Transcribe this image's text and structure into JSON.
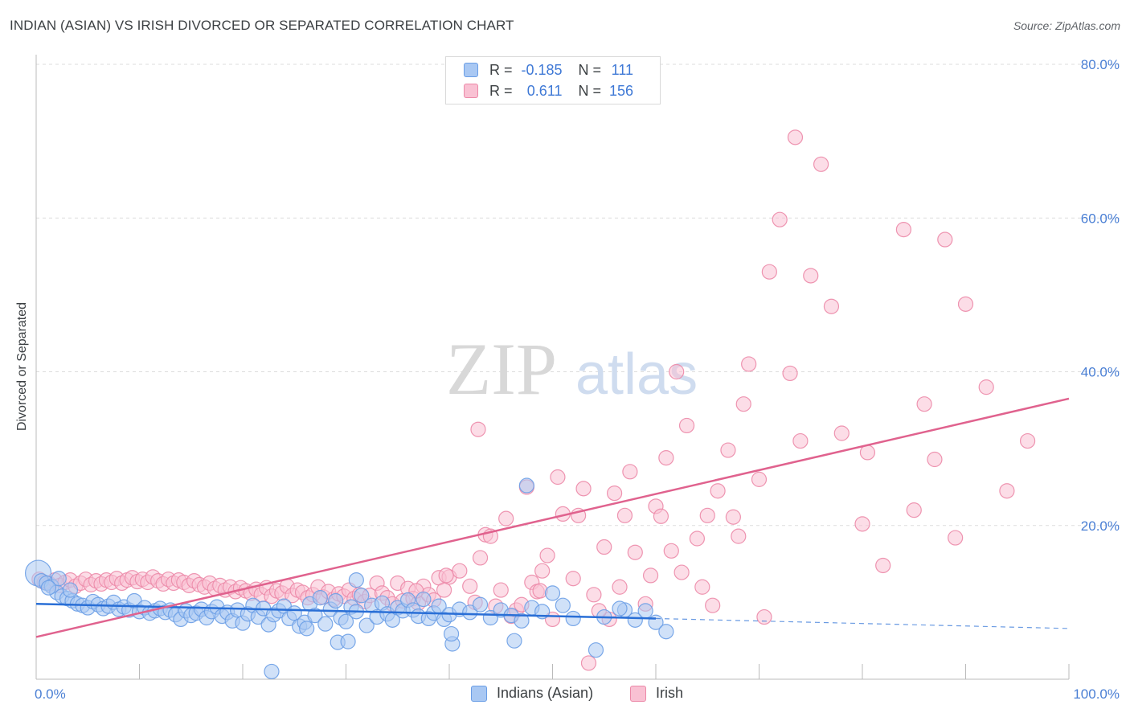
{
  "header": {
    "title": "INDIAN (ASIAN) VS IRISH DIVORCED OR SEPARATED CORRELATION CHART",
    "source": "Source: ZipAtlas.com"
  },
  "legend_top": {
    "rows": [
      {
        "r_label": "R = ",
        "r_value": "-0.185",
        "n_label": "N = ",
        "n_value": "111"
      },
      {
        "r_label": "R = ",
        "r_value": "0.611",
        "n_label": "N = ",
        "n_value": "156"
      }
    ]
  },
  "legend_bottom": {
    "items": [
      {
        "label": "Indians (Asian)"
      },
      {
        "label": "Irish"
      }
    ]
  },
  "watermark": {
    "zip": "ZIP",
    "atlas": "atlas"
  },
  "colors": {
    "indians_fill": "#a9c8f3",
    "indians_stroke": "#6b9ee6",
    "indians_line": "#2a6fd6",
    "irish_fill": "#f9c1d3",
    "irish_stroke": "#ec89a8",
    "irish_line": "#e0628e",
    "axis_label": "#4a7fd4",
    "grid": "#dddddd"
  },
  "chart_data": {
    "type": "scatter",
    "title": "INDIAN (ASIAN) VS IRISH DIVORCED OR SEPARATED CORRELATION CHART",
    "xlabel": "",
    "ylabel": "Divorced or Separated",
    "xlim": [
      0,
      100
    ],
    "ylim": [
      0,
      80
    ],
    "x_tick_labels": [
      "0.0%",
      "100.0%"
    ],
    "y_ticks": [
      20,
      40,
      60,
      80
    ],
    "y_tick_labels": [
      "20.0%",
      "40.0%",
      "60.0%",
      "80.0%"
    ],
    "grid": "horizontal dashed",
    "legend_position": "top-center",
    "series": [
      {
        "name": "Indians (Asian)",
        "r": -0.185,
        "n": 111,
        "trend": {
          "x0": 0,
          "y0": 9.8,
          "x1": 60,
          "y1": 7.9,
          "dashed_to_x": 100,
          "dashed_to_y": 6.6
        },
        "points": [
          [
            0.2,
            13.8
          ],
          [
            0.5,
            12.8
          ],
          [
            1.0,
            12.5
          ],
          [
            1.5,
            12.1
          ],
          [
            2.0,
            11.3
          ],
          [
            2.5,
            10.8
          ],
          [
            3.0,
            10.5
          ],
          [
            3.5,
            10.2
          ],
          [
            4.0,
            9.8
          ],
          [
            4.5,
            9.6
          ],
          [
            5.0,
            9.3
          ],
          [
            5.5,
            10.1
          ],
          [
            6.0,
            9.7
          ],
          [
            6.5,
            9.2
          ],
          [
            7.0,
            9.5
          ],
          [
            7.5,
            10.0
          ],
          [
            8.0,
            9.1
          ],
          [
            8.5,
            9.4
          ],
          [
            9.0,
            9.0
          ],
          [
            9.5,
            10.2
          ],
          [
            10.0,
            8.8
          ],
          [
            10.5,
            9.3
          ],
          [
            11.0,
            8.6
          ],
          [
            11.5,
            8.9
          ],
          [
            12.0,
            9.2
          ],
          [
            12.5,
            8.7
          ],
          [
            13.0,
            9.0
          ],
          [
            13.5,
            8.4
          ],
          [
            14.0,
            7.8
          ],
          [
            14.5,
            8.9
          ],
          [
            15.0,
            8.3
          ],
          [
            15.5,
            8.6
          ],
          [
            16.0,
            9.1
          ],
          [
            16.5,
            8.0
          ],
          [
            17.0,
            8.8
          ],
          [
            17.5,
            9.4
          ],
          [
            18.0,
            8.2
          ],
          [
            18.5,
            8.7
          ],
          [
            19.0,
            7.6
          ],
          [
            19.5,
            9.0
          ],
          [
            20.0,
            7.3
          ],
          [
            20.5,
            8.5
          ],
          [
            21.0,
            9.6
          ],
          [
            21.5,
            8.1
          ],
          [
            22.0,
            9.2
          ],
          [
            22.5,
            7.1
          ],
          [
            23.0,
            8.4
          ],
          [
            23.5,
            8.9
          ],
          [
            24.0,
            9.5
          ],
          [
            24.5,
            7.9
          ],
          [
            25.0,
            8.6
          ],
          [
            25.5,
            6.9
          ],
          [
            26.0,
            7.4
          ],
          [
            26.5,
            9.8
          ],
          [
            27.0,
            8.3
          ],
          [
            27.5,
            10.6
          ],
          [
            28.0,
            7.2
          ],
          [
            28.5,
            9.1
          ],
          [
            29.0,
            10.2
          ],
          [
            29.5,
            8.0
          ],
          [
            30.0,
            7.5
          ],
          [
            30.5,
            9.4
          ],
          [
            31.0,
            8.8
          ],
          [
            31.5,
            10.9
          ],
          [
            32.0,
            7.0
          ],
          [
            32.5,
            9.6
          ],
          [
            33.0,
            8.1
          ],
          [
            33.5,
            9.9
          ],
          [
            34.0,
            8.5
          ],
          [
            34.5,
            7.7
          ],
          [
            35.0,
            9.3
          ],
          [
            35.5,
            8.9
          ],
          [
            36.0,
            10.3
          ],
          [
            36.5,
            9.0
          ],
          [
            37.0,
            8.2
          ],
          [
            37.5,
            10.4
          ],
          [
            38.0,
            7.9
          ],
          [
            38.5,
            8.6
          ],
          [
            39.0,
            9.5
          ],
          [
            39.5,
            7.8
          ],
          [
            40.0,
            8.4
          ],
          [
            41.0,
            9.1
          ],
          [
            42.0,
            8.7
          ],
          [
            43.0,
            9.7
          ],
          [
            44.0,
            8.0
          ],
          [
            45.0,
            9.0
          ],
          [
            46.0,
            8.3
          ],
          [
            47.0,
            7.6
          ],
          [
            47.5,
            25.2
          ],
          [
            48.0,
            9.3
          ],
          [
            49.0,
            8.8
          ],
          [
            50.0,
            11.2
          ],
          [
            51.0,
            9.6
          ],
          [
            52.0,
            7.9
          ],
          [
            55.0,
            8.1
          ],
          [
            57.0,
            9.0
          ],
          [
            58.0,
            7.7
          ],
          [
            59.0,
            8.9
          ],
          [
            60.0,
            7.4
          ],
          [
            61.0,
            6.2
          ],
          [
            2.2,
            13.1
          ],
          [
            3.3,
            11.6
          ],
          [
            1.2,
            11.9
          ],
          [
            22.8,
            1.0
          ],
          [
            26.2,
            6.6
          ],
          [
            31.0,
            12.9
          ],
          [
            29.2,
            4.8
          ],
          [
            30.2,
            4.9
          ],
          [
            40.3,
            4.6
          ],
          [
            40.2,
            5.9
          ],
          [
            46.3,
            5.0
          ],
          [
            54.2,
            3.8
          ],
          [
            56.5,
            9.2
          ]
        ]
      },
      {
        "name": "Irish",
        "r": 0.611,
        "n": 156,
        "trend": {
          "x0": 0,
          "y0": 5.5,
          "x1": 100,
          "y1": 36.5
        },
        "points": [
          [
            0.3,
            13.0
          ],
          [
            0.8,
            12.6
          ],
          [
            1.3,
            12.4
          ],
          [
            1.8,
            12.9
          ],
          [
            2.3,
            12.2
          ],
          [
            2.8,
            12.6
          ],
          [
            3.3,
            12.9
          ],
          [
            3.8,
            12.1
          ],
          [
            4.3,
            12.5
          ],
          [
            4.8,
            13.0
          ],
          [
            5.3,
            12.3
          ],
          [
            5.8,
            12.8
          ],
          [
            6.3,
            12.4
          ],
          [
            6.8,
            12.9
          ],
          [
            7.3,
            12.6
          ],
          [
            7.8,
            13.1
          ],
          [
            8.3,
            12.5
          ],
          [
            8.8,
            12.9
          ],
          [
            9.3,
            13.2
          ],
          [
            9.8,
            12.7
          ],
          [
            10.3,
            13.0
          ],
          [
            10.8,
            12.6
          ],
          [
            11.3,
            13.3
          ],
          [
            11.8,
            12.8
          ],
          [
            12.3,
            12.4
          ],
          [
            12.8,
            13.0
          ],
          [
            13.3,
            12.5
          ],
          [
            13.8,
            12.9
          ],
          [
            14.3,
            12.6
          ],
          [
            14.8,
            12.2
          ],
          [
            15.3,
            12.8
          ],
          [
            15.8,
            12.3
          ],
          [
            16.3,
            12.0
          ],
          [
            16.8,
            12.5
          ],
          [
            17.3,
            11.8
          ],
          [
            17.8,
            12.2
          ],
          [
            18.3,
            11.6
          ],
          [
            18.8,
            12.0
          ],
          [
            19.3,
            11.4
          ],
          [
            19.8,
            11.9
          ],
          [
            20.3,
            11.5
          ],
          [
            20.8,
            11.2
          ],
          [
            21.3,
            11.7
          ],
          [
            21.8,
            11.0
          ],
          [
            22.3,
            11.9
          ],
          [
            22.8,
            10.8
          ],
          [
            23.3,
            11.5
          ],
          [
            23.8,
            11.2
          ],
          [
            24.3,
            12.1
          ],
          [
            24.8,
            10.9
          ],
          [
            25.3,
            11.6
          ],
          [
            25.8,
            11.3
          ],
          [
            26.3,
            10.6
          ],
          [
            26.8,
            11.0
          ],
          [
            27.3,
            12.0
          ],
          [
            27.8,
            10.7
          ],
          [
            28.3,
            11.4
          ],
          [
            28.8,
            10.4
          ],
          [
            29.3,
            11.1
          ],
          [
            29.8,
            10.8
          ],
          [
            30.3,
            11.6
          ],
          [
            30.8,
            10.5
          ],
          [
            31.3,
            11.0
          ],
          [
            31.8,
            10.1
          ],
          [
            32.3,
            10.9
          ],
          [
            33.0,
            12.5
          ],
          [
            33.5,
            11.2
          ],
          [
            34.0,
            10.6
          ],
          [
            34.5,
            9.8
          ],
          [
            35.0,
            12.5
          ],
          [
            35.5,
            10.2
          ],
          [
            36.0,
            11.8
          ],
          [
            36.5,
            10.5
          ],
          [
            37.0,
            9.9
          ],
          [
            37.5,
            12.1
          ],
          [
            38.0,
            11.0
          ],
          [
            38.5,
            10.3
          ],
          [
            39.0,
            13.2
          ],
          [
            39.5,
            11.6
          ],
          [
            40.0,
            13.3
          ],
          [
            41.0,
            14.1
          ],
          [
            42.0,
            12.1
          ],
          [
            42.5,
            10.0
          ],
          [
            43.0,
            15.8
          ],
          [
            43.5,
            18.8
          ],
          [
            44.0,
            18.6
          ],
          [
            44.5,
            9.5
          ],
          [
            45.0,
            11.6
          ],
          [
            45.5,
            20.9
          ],
          [
            46.0,
            8.2
          ],
          [
            46.5,
            9.0
          ],
          [
            47.0,
            9.7
          ],
          [
            47.5,
            25.0
          ],
          [
            48.0,
            12.6
          ],
          [
            48.5,
            11.4
          ],
          [
            49.0,
            14.1
          ],
          [
            49.5,
            16.1
          ],
          [
            50.0,
            7.8
          ],
          [
            50.5,
            26.3
          ],
          [
            51.0,
            21.5
          ],
          [
            52.0,
            13.1
          ],
          [
            52.5,
            21.3
          ],
          [
            53.0,
            24.8
          ],
          [
            54.0,
            11.0
          ],
          [
            55.0,
            17.2
          ],
          [
            56.0,
            24.2
          ],
          [
            56.5,
            12.0
          ],
          [
            57.0,
            21.3
          ],
          [
            57.5,
            27.0
          ],
          [
            58.0,
            16.5
          ],
          [
            59.0,
            9.8
          ],
          [
            60.0,
            22.5
          ],
          [
            60.5,
            21.2
          ],
          [
            61.0,
            28.8
          ],
          [
            61.5,
            16.7
          ],
          [
            62.0,
            40.0
          ],
          [
            62.5,
            13.9
          ],
          [
            63.0,
            33.0
          ],
          [
            64.0,
            18.3
          ],
          [
            65.0,
            21.3
          ],
          [
            65.5,
            9.6
          ],
          [
            66.0,
            24.5
          ],
          [
            67.0,
            29.8
          ],
          [
            67.5,
            21.1
          ],
          [
            68.0,
            18.6
          ],
          [
            69.0,
            41.0
          ],
          [
            70.0,
            26.0
          ],
          [
            71.0,
            53.0
          ],
          [
            72.0,
            59.8
          ],
          [
            73.0,
            39.8
          ],
          [
            74.0,
            31.0
          ],
          [
            75.0,
            52.5
          ],
          [
            76.0,
            67.0
          ],
          [
            77.0,
            48.5
          ],
          [
            78.0,
            32.0
          ],
          [
            80.0,
            20.2
          ],
          [
            82.0,
            14.8
          ],
          [
            84.0,
            58.5
          ],
          [
            85.0,
            22.0
          ],
          [
            86.0,
            35.8
          ],
          [
            87.0,
            28.6
          ],
          [
            88.0,
            57.2
          ],
          [
            89.0,
            18.4
          ],
          [
            90.0,
            48.8
          ],
          [
            92.0,
            38.0
          ],
          [
            94.0,
            24.5
          ],
          [
            96.0,
            31.0
          ],
          [
            73.5,
            70.5
          ],
          [
            80.5,
            29.5
          ],
          [
            68.5,
            35.8
          ],
          [
            70.5,
            8.1
          ],
          [
            55.5,
            7.8
          ],
          [
            53.5,
            2.1
          ],
          [
            59.5,
            13.5
          ],
          [
            54.5,
            8.9
          ],
          [
            64.5,
            12.0
          ],
          [
            42.8,
            32.5
          ],
          [
            39.7,
            13.5
          ],
          [
            48.8,
            11.5
          ],
          [
            36.8,
            11.5
          ]
        ]
      }
    ]
  }
}
